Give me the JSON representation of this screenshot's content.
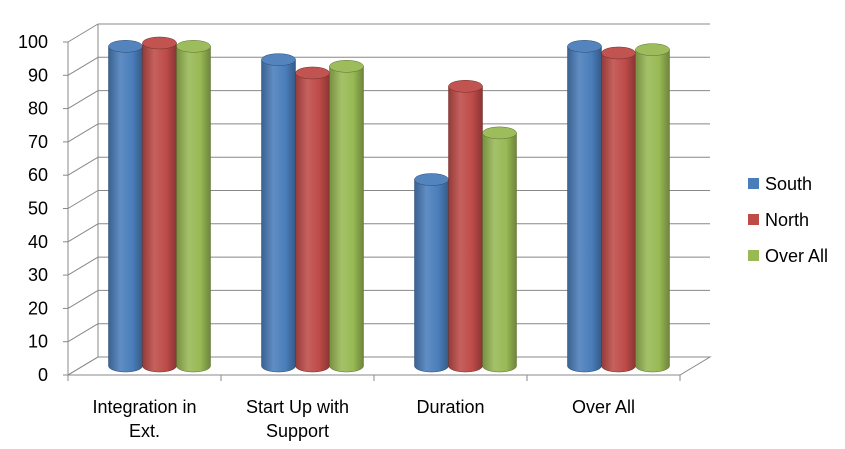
{
  "chart_data": {
    "type": "bar",
    "style": "3d-cylinder",
    "categories": [
      [
        "Integration in",
        "Ext."
      ],
      [
        "Start Up with",
        "Support"
      ],
      [
        "Duration"
      ],
      [
        "Over All"
      ]
    ],
    "series": [
      {
        "name": "South",
        "color": "#4A7EBB",
        "values": [
          96,
          92,
          56,
          96
        ]
      },
      {
        "name": "North",
        "color": "#BE4B48",
        "values": [
          97,
          88,
          84,
          94
        ]
      },
      {
        "name": "Over All",
        "color": "#98B954",
        "values": [
          96,
          90,
          70,
          95
        ]
      }
    ],
    "ylim": [
      0,
      100
    ],
    "yticks": [
      0,
      10,
      20,
      30,
      40,
      50,
      60,
      70,
      80,
      90,
      100
    ],
    "grid": true,
    "legend_position": "right"
  }
}
